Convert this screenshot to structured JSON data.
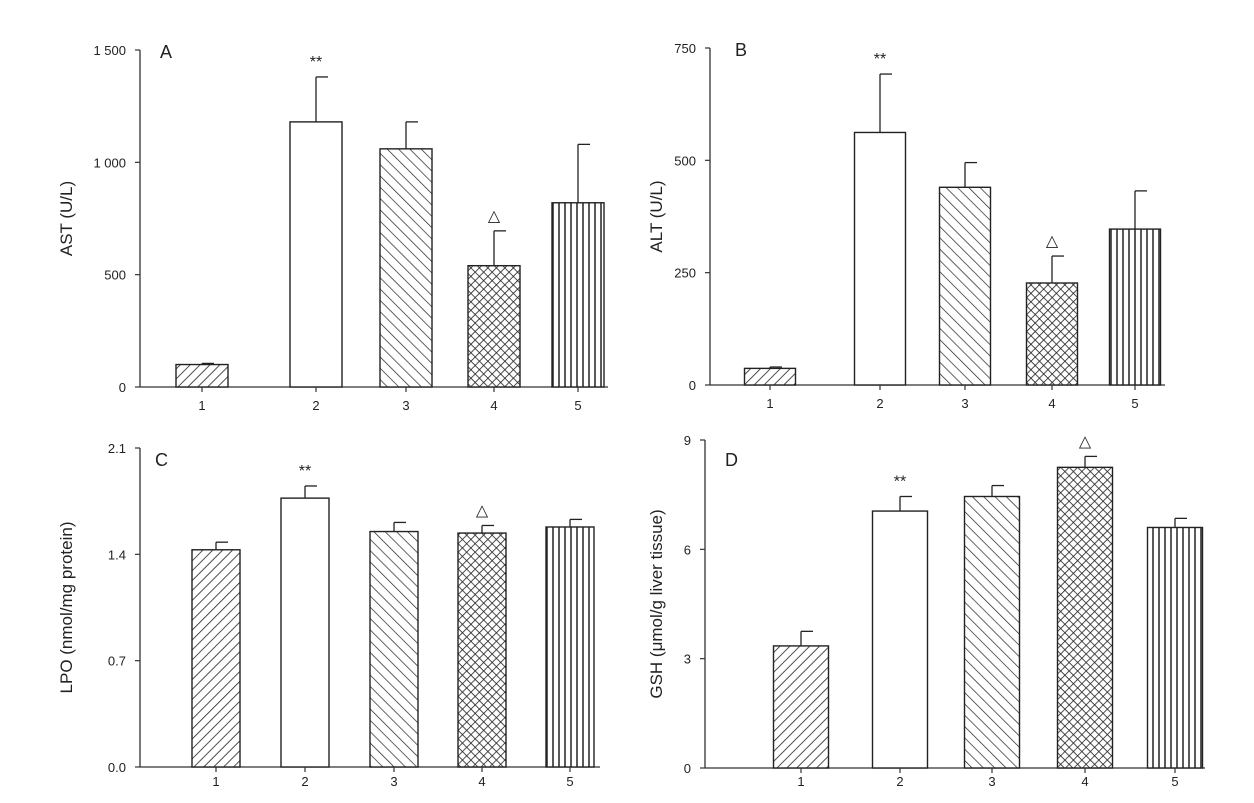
{
  "chart_data": [
    {
      "type": "bar",
      "panel": "A",
      "ylabel": "AST (U/L)",
      "categories": [
        "1",
        "2",
        "3",
        "4",
        "5"
      ],
      "values": [
        100,
        1180,
        1060,
        540,
        820
      ],
      "errors": [
        5,
        200,
        120,
        155,
        260
      ],
      "markers": [
        "",
        "**",
        "",
        "△",
        ""
      ],
      "patterns": [
        "diag-fwd",
        "none",
        "diag-back",
        "cross",
        "vert"
      ],
      "ylim": [
        0,
        1500
      ],
      "yticks": [
        0,
        500,
        1000,
        1500
      ],
      "ytick_labels": [
        "0",
        "500",
        "1 000",
        "1 500"
      ],
      "grid": false
    },
    {
      "type": "bar",
      "panel": "B",
      "ylabel": "ALT (U/L)",
      "categories": [
        "1",
        "2",
        "3",
        "4",
        "5"
      ],
      "values": [
        37,
        562,
        440,
        227,
        347
      ],
      "errors": [
        3,
        130,
        55,
        60,
        85
      ],
      "markers": [
        "",
        "**",
        "",
        "△",
        ""
      ],
      "patterns": [
        "diag-fwd",
        "none",
        "diag-back",
        "cross",
        "vert"
      ],
      "ylim": [
        0,
        750
      ],
      "yticks": [
        0,
        250,
        500,
        750
      ],
      "ytick_labels": [
        "0",
        "250",
        "500",
        "750"
      ],
      "grid": false
    },
    {
      "type": "bar",
      "panel": "C",
      "ylabel": "LPO (nmol/mg protein)",
      "categories": [
        "1",
        "2",
        "3",
        "4",
        "5"
      ],
      "values": [
        1.43,
        1.77,
        1.55,
        1.54,
        1.58
      ],
      "errors": [
        0.05,
        0.08,
        0.06,
        0.05,
        0.05
      ],
      "markers": [
        "",
        "**",
        "",
        "△",
        ""
      ],
      "patterns": [
        "diag-fwd",
        "none",
        "diag-back",
        "cross",
        "vert"
      ],
      "ylim": [
        0,
        2.1
      ],
      "yticks": [
        0,
        0.7,
        1.4,
        2.1
      ],
      "ytick_labels": [
        "0.0",
        "0.7",
        "1.4",
        "2.1"
      ],
      "grid": false
    },
    {
      "type": "bar",
      "panel": "D",
      "ylabel": "GSH (μmol/g liver tissue)",
      "categories": [
        "1",
        "2",
        "3",
        "4",
        "5"
      ],
      "values": [
        3.35,
        7.05,
        7.45,
        8.25,
        6.6
      ],
      "errors": [
        0.4,
        0.4,
        0.3,
        0.3,
        0.25
      ],
      "markers": [
        "",
        "**",
        "",
        "△",
        ""
      ],
      "patterns": [
        "diag-fwd",
        "none",
        "diag-back",
        "cross",
        "vert"
      ],
      "ylim": [
        0,
        9
      ],
      "yticks": [
        0,
        3,
        6,
        9
      ],
      "ytick_labels": [
        "0",
        "3",
        "6",
        "9"
      ],
      "grid": false
    }
  ]
}
